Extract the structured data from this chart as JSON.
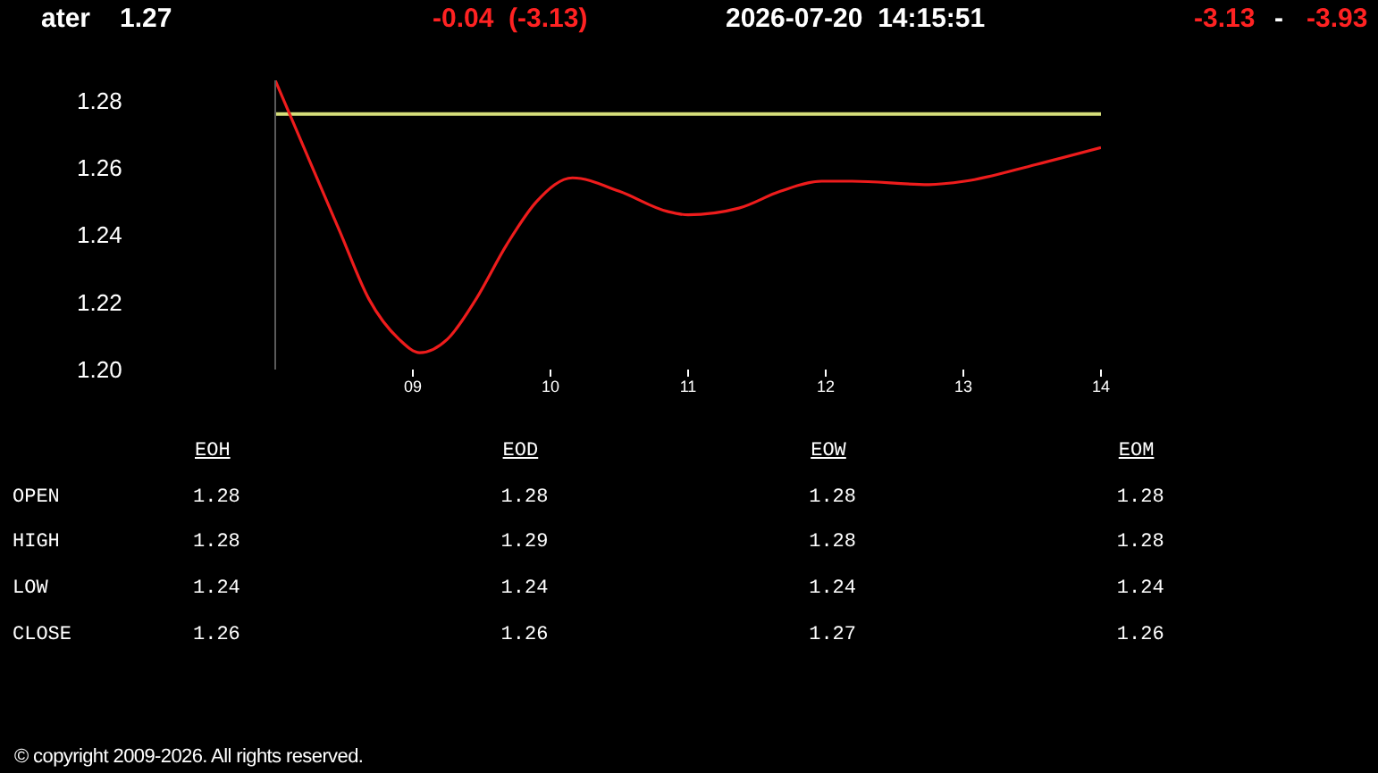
{
  "chart_data": [
    {
      "type": "line",
      "title": "ater",
      "annotations": [
        "1.27",
        "-0.04  (-3.13)",
        "2026-07-20  14:15:51",
        "-3.13",
        "-",
        "-3.93",
        "© copyright 2009-2026. All rights reserved."
      ],
      "x": [
        8.0,
        8.25,
        8.47,
        8.68,
        8.9,
        9.05,
        9.25,
        9.46,
        9.68,
        9.9,
        10.16,
        10.5,
        10.85,
        11.0,
        11.37,
        11.67,
        11.97,
        12.19,
        12.75,
        13.01,
        13.53,
        14.0
      ],
      "series": [
        {
          "color": "#ee1c1c",
          "values": [
            1.286,
            1.262,
            1.241,
            1.221,
            1.209,
            1.205,
            1.209,
            1.221,
            1.237,
            1.25,
            1.257,
            1.253,
            1.247,
            1.246,
            1.248,
            1.253,
            1.256,
            1.256,
            1.255,
            1.256,
            1.261,
            1.266
          ]
        }
      ],
      "xlim": [
        8,
        14
      ],
      "xticks": [
        {
          "value": 9,
          "label": "09"
        },
        10,
        11,
        12,
        13,
        14
      ],
      "ylim": [
        1.2,
        1.286
      ],
      "yticks": [
        {
          "value": 1.2,
          "label": "1.20"
        },
        1.22,
        1.24,
        1.26,
        1.28
      ],
      "ref_lines": [
        {
          "axis": "y",
          "value": 1.276,
          "color": "#d6de7a"
        }
      ],
      "marker": "none",
      "line_style": "solid"
    },
    {
      "type": "other",
      "categories": [
        "EOH",
        "EOD",
        "EOW",
        "EOM"
      ],
      "series": [
        {
          "name": "OPEN",
          "values": [
            1.28,
            1.28,
            1.28,
            1.28
          ]
        },
        {
          "name": "HIGH",
          "values": [
            1.28,
            1.29,
            1.28,
            1.28
          ]
        },
        {
          "name": "LOW",
          "values": [
            1.24,
            1.24,
            1.24,
            1.24
          ]
        },
        {
          "name": "CLOSE",
          "values": [
            1.26,
            1.26,
            1.27,
            1.26
          ]
        }
      ],
      "data_labels": true
    }
  ]
}
